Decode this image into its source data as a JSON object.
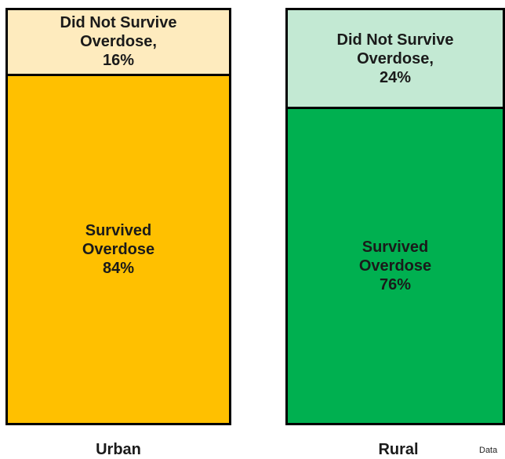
{
  "chart_data": {
    "type": "stacked_bar",
    "categories": [
      "Urban",
      "Rural"
    ],
    "series": [
      {
        "name": "Survived Overdose",
        "colors": [
          "#FFC000",
          "#00B050"
        ],
        "values": [
          84,
          76
        ],
        "value_labels": [
          "84%",
          "76%"
        ]
      },
      {
        "name": "Did Not Survive Overdose,",
        "colors": [
          "#FEEBBE",
          "#C3E9D3"
        ],
        "values": [
          16,
          24
        ],
        "value_labels": [
          "16%",
          "24%"
        ]
      }
    ],
    "note": "Data"
  }
}
